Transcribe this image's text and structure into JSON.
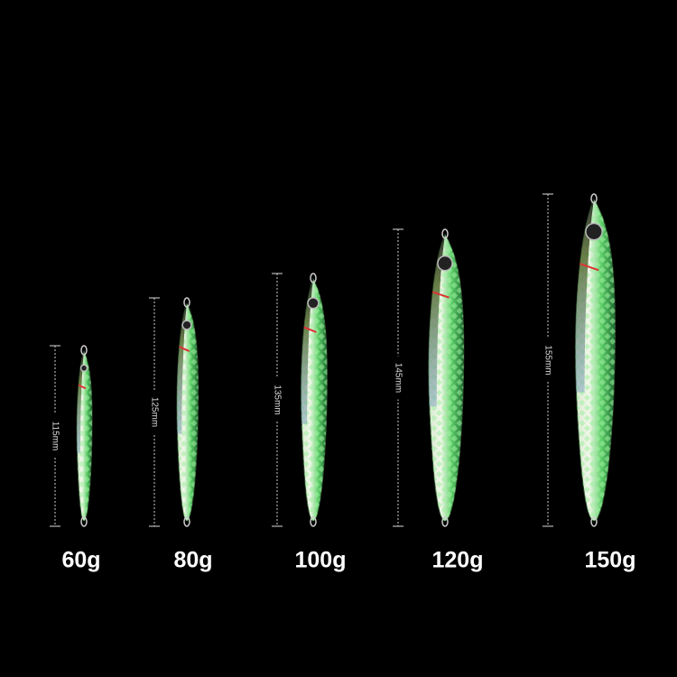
{
  "items": [
    {
      "length": "115mm",
      "weight": "60g"
    },
    {
      "length": "125mm",
      "weight": "80g"
    },
    {
      "length": "135mm",
      "weight": "100g"
    },
    {
      "length": "145mm",
      "weight": "120g"
    },
    {
      "length": "155mm",
      "weight": "150g"
    }
  ]
}
